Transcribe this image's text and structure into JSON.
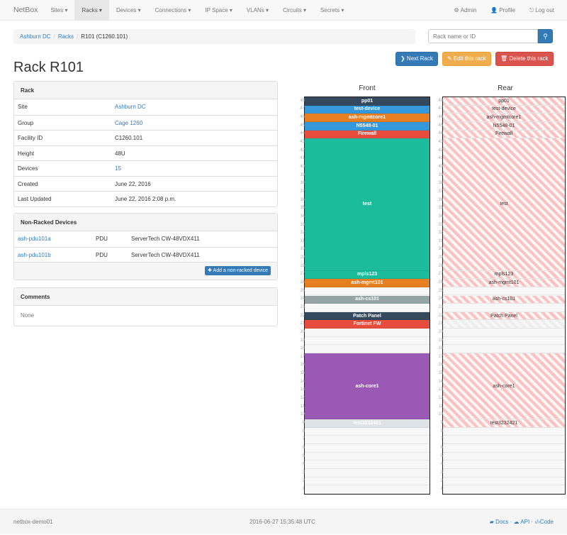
{
  "nav": {
    "brand": "NetBox",
    "items": [
      "Sites ▾",
      "Racks ▾",
      "Devices ▾",
      "Connections ▾",
      "IP Space ▾",
      "VLANs ▾",
      "Circuits ▾",
      "Secrets ▾"
    ],
    "active": 1,
    "right": [
      {
        "icon": "gear-icon",
        "glyph": "⚙",
        "label": "Admin"
      },
      {
        "icon": "user-icon",
        "glyph": "👤",
        "label": "Profile"
      },
      {
        "icon": "logout-icon",
        "glyph": "⎋",
        "label": "Log out"
      }
    ]
  },
  "breadcrumb": [
    "Ashburn DC",
    "Racks",
    "R101 (C1260.101)"
  ],
  "search": {
    "placeholder": "Rack name or ID",
    "value": ""
  },
  "buttons": {
    "next": "❯ Next Rack",
    "edit": "✎ Edit this rack",
    "delete": "🗑 Delete this rack"
  },
  "title": "Rack R101",
  "rack_panel": {
    "heading": "Rack",
    "rows": [
      {
        "k": "Site",
        "v": "Ashburn DC",
        "link": true
      },
      {
        "k": "Group",
        "v": "Cage 1260",
        "link": true
      },
      {
        "k": "Facility ID",
        "v": "C1260.101"
      },
      {
        "k": "Height",
        "v": "48U"
      },
      {
        "k": "Devices",
        "v": "15",
        "link": true
      },
      {
        "k": "Created",
        "v": "June 22, 2016"
      },
      {
        "k": "Last Updated",
        "v": "June 22, 2016 2:08 p.m."
      }
    ]
  },
  "nonracked": {
    "heading": "Non-Racked Devices",
    "rows": [
      [
        "ash-pdu101a",
        "PDU",
        "ServerTech CW-48VDX411"
      ],
      [
        "ash-pdu101b",
        "PDU",
        "ServerTech CW-48VDX411"
      ]
    ],
    "add": "✚ Add a non-racked device"
  },
  "comments": {
    "heading": "Comments",
    "body": "None"
  },
  "rack": {
    "units": 48,
    "front_label": "Front",
    "rear_label": "Rear",
    "devices": [
      {
        "name": "pp01",
        "u": 48,
        "h": 1,
        "color": "#34495e"
      },
      {
        "name": "test-device",
        "u": 47,
        "h": 1,
        "color": "#3498db"
      },
      {
        "name": "ash-mgmtcore1",
        "u": 46,
        "h": 1,
        "color": "#e67e22"
      },
      {
        "name": "N5548-01",
        "u": 45,
        "h": 1,
        "color": "#3498db"
      },
      {
        "name": "Firewall",
        "u": 44,
        "h": 1,
        "color": "#e74c3c"
      },
      {
        "name": "test",
        "u": 28,
        "h": 16,
        "color": "#1abc9c"
      },
      {
        "name": "mpls123",
        "u": 27,
        "h": 1,
        "color": "#1abc9c"
      },
      {
        "name": "ash-mgmt101",
        "u": 26,
        "h": 1,
        "color": "#e67e22"
      },
      {
        "name": "ash-cs101",
        "u": 24,
        "h": 1,
        "color": "#95a5a6"
      },
      {
        "name": "Patch Panel",
        "u": 22,
        "h": 1,
        "color": "#34495e"
      },
      {
        "name": "Fortinet FW",
        "u": 21,
        "h": 1,
        "color": "#e74c3c",
        "front_only": true
      },
      {
        "name": "ash-core1",
        "u": 10,
        "h": 8,
        "color": "#9b59b6"
      },
      {
        "name": "test3232421",
        "u": 9,
        "h": 1,
        "color": "#dde3e6"
      }
    ],
    "rear_reserved": [
      21
    ]
  },
  "footer": {
    "host": "netbox-demo01",
    "time": "2016-06-27 15:35:48 UTC",
    "docs": "Docs",
    "api": "API",
    "code": "Code"
  }
}
